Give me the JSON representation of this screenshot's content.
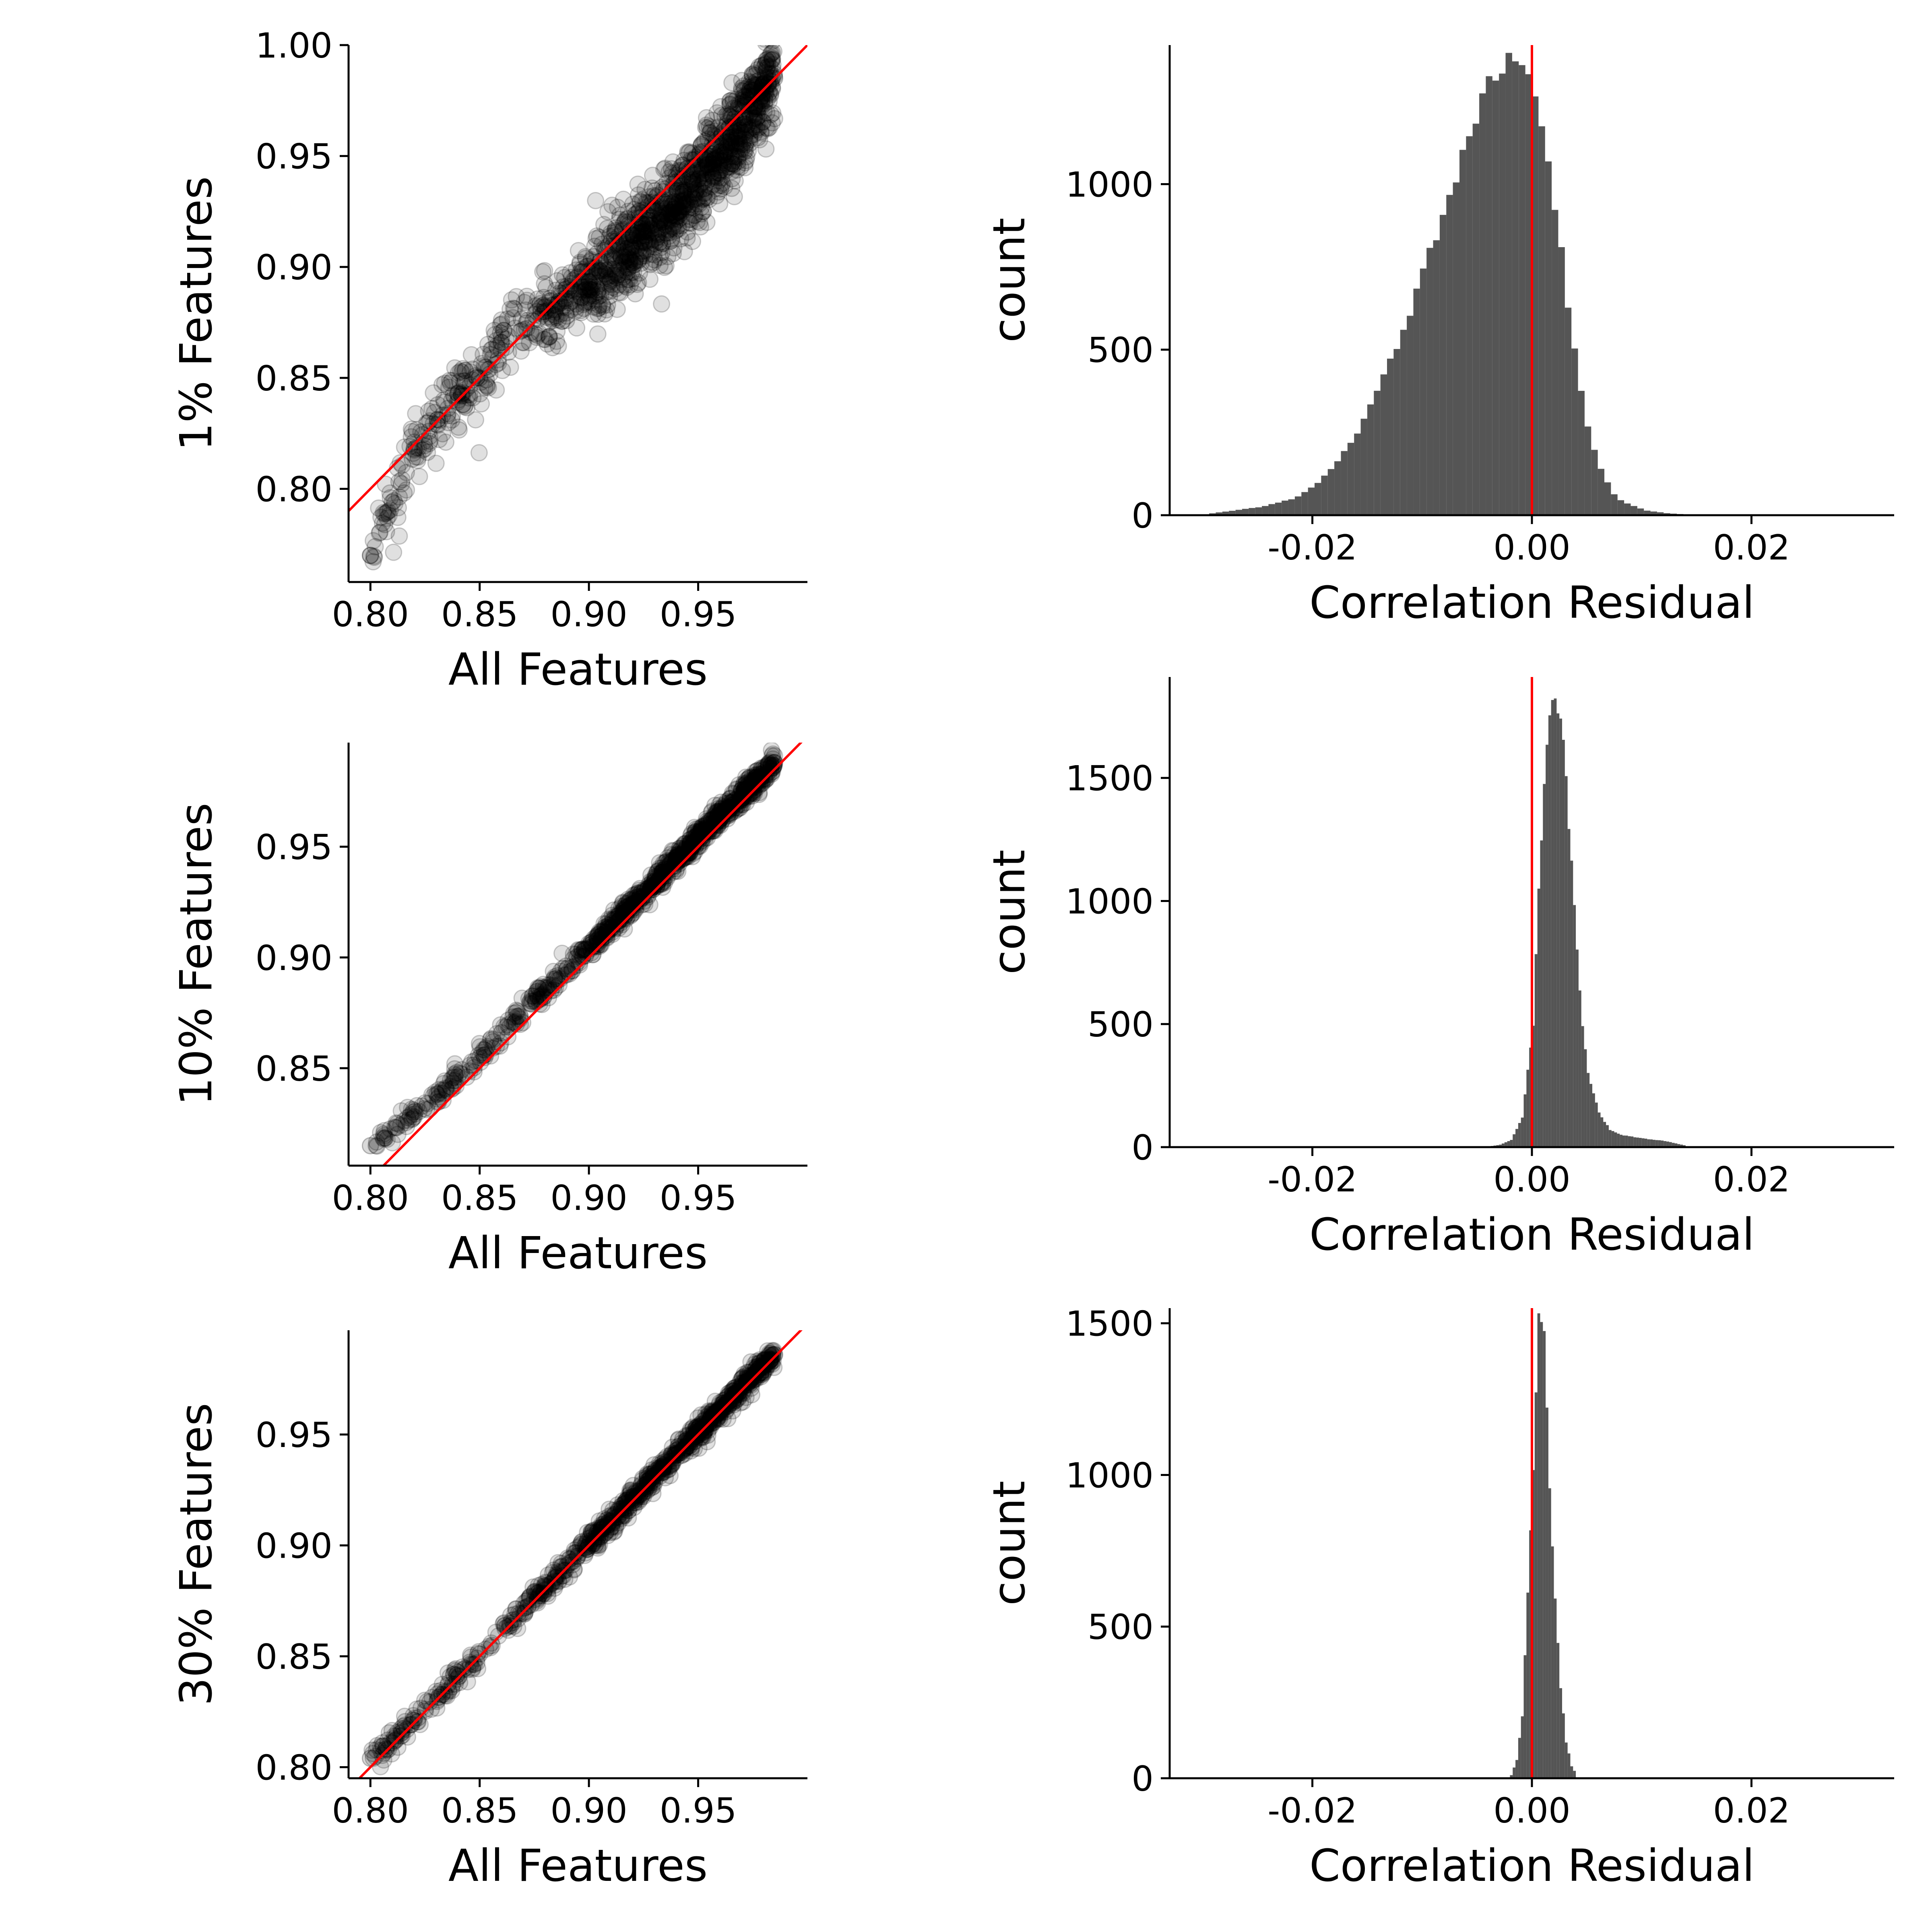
{
  "chart_data": [
    {
      "type": "scatter",
      "xlabel": "All Features",
      "ylabel": "1% Features",
      "xlim": [
        0.79,
        1.0
      ],
      "ylim": [
        0.758,
        1.0
      ],
      "xticks": [
        "0.80",
        "0.85",
        "0.90",
        "0.95"
      ],
      "yticks": [
        "0.80",
        "0.85",
        "0.90",
        "0.95",
        "1.00"
      ],
      "series": [
        {
          "x": 0.8,
          "y": 0.77
        },
        {
          "x": 0.81,
          "y": 0.794
        },
        {
          "x": 0.82,
          "y": 0.818
        },
        {
          "x": 0.84,
          "y": 0.843
        },
        {
          "x": 0.85,
          "y": 0.85
        },
        {
          "x": 0.86,
          "y": 0.866
        },
        {
          "x": 0.88,
          "y": 0.88
        },
        {
          "x": 0.9,
          "y": 0.893
        },
        {
          "x": 0.92,
          "y": 0.91
        },
        {
          "x": 0.94,
          "y": 0.928
        },
        {
          "x": 0.96,
          "y": 0.95
        },
        {
          "x": 0.985,
          "y": 0.985
        }
      ],
      "reference_line": "y = x",
      "colors": {
        "points": "#000000",
        "reference_line": "#ff0000"
      }
    },
    {
      "type": "bar",
      "xlabel": "Correlation Residual",
      "ylabel": "count",
      "xlim": [
        -0.033,
        0.033
      ],
      "ylim": [
        0,
        1420
      ],
      "xticks": [
        "-0.02",
        "0.00",
        "0.02"
      ],
      "yticks": [
        "0",
        "500",
        "1000"
      ],
      "x": [
        -0.03,
        -0.025,
        -0.022,
        -0.02,
        -0.018,
        -0.016,
        -0.014,
        -0.012,
        -0.01,
        -0.008,
        -0.006,
        -0.005,
        -0.004,
        -0.003,
        -0.002,
        -0.001,
        0.0,
        0.001,
        0.002,
        0.003,
        0.004,
        0.005,
        0.006,
        0.007,
        0.008,
        0.01,
        0.012,
        0.014
      ],
      "values": [
        3,
        25,
        50,
        90,
        160,
        260,
        400,
        560,
        750,
        950,
        1140,
        1230,
        1310,
        1360,
        1370,
        1340,
        1240,
        1100,
        900,
        640,
        400,
        240,
        140,
        70,
        40,
        15,
        6,
        2
      ],
      "reference_line": "x = 0",
      "colors": {
        "bars": "#555555",
        "reference_line": "#ff0000"
      }
    },
    {
      "type": "scatter",
      "xlabel": "All Features",
      "ylabel": "10% Features",
      "xlim": [
        0.79,
        1.0
      ],
      "ylim": [
        0.806,
        0.997
      ],
      "xticks": [
        "0.80",
        "0.85",
        "0.90",
        "0.95"
      ],
      "yticks": [
        "0.85",
        "0.90",
        "0.95"
      ],
      "series": [
        {
          "x": 0.8,
          "y": 0.815
        },
        {
          "x": 0.82,
          "y": 0.828
        },
        {
          "x": 0.84,
          "y": 0.846
        },
        {
          "x": 0.86,
          "y": 0.866
        },
        {
          "x": 0.89,
          "y": 0.895
        },
        {
          "x": 0.92,
          "y": 0.924
        },
        {
          "x": 0.95,
          "y": 0.954
        },
        {
          "x": 0.985,
          "y": 0.988
        }
      ],
      "reference_line": "y = x",
      "colors": {
        "points": "#000000",
        "reference_line": "#ff0000"
      }
    },
    {
      "type": "bar",
      "xlabel": "Correlation Residual",
      "ylabel": "count",
      "xlim": [
        -0.033,
        0.033
      ],
      "ylim": [
        0,
        1910
      ],
      "xticks": [
        "-0.02",
        "0.00",
        "0.02"
      ],
      "yticks": [
        "0",
        "500",
        "1000",
        "1500"
      ],
      "x": [
        -0.004,
        -0.003,
        -0.002,
        -0.001,
        0.0,
        0.0005,
        0.001,
        0.0015,
        0.002,
        0.0025,
        0.003,
        0.0035,
        0.004,
        0.0045,
        0.005,
        0.006,
        0.007,
        0.008,
        0.01,
        0.012,
        0.014
      ],
      "values": [
        3,
        10,
        30,
        120,
        500,
        1050,
        1500,
        1780,
        1850,
        1740,
        1500,
        1150,
        800,
        500,
        300,
        140,
        70,
        50,
        35,
        25,
        5
      ],
      "reference_line": "x = 0",
      "colors": {
        "bars": "#555555",
        "reference_line": "#ff0000"
      }
    },
    {
      "type": "scatter",
      "xlabel": "All Features",
      "ylabel": "30% Features",
      "xlim": [
        0.79,
        1.0
      ],
      "ylim": [
        0.795,
        0.997
      ],
      "xticks": [
        "0.80",
        "0.85",
        "0.90",
        "0.95"
      ],
      "yticks": [
        "0.80",
        "0.85",
        "0.90",
        "0.95"
      ],
      "series": [
        {
          "x": 0.8,
          "y": 0.804
        },
        {
          "x": 0.82,
          "y": 0.821
        },
        {
          "x": 0.85,
          "y": 0.851
        },
        {
          "x": 0.89,
          "y": 0.891
        },
        {
          "x": 0.92,
          "y": 0.921
        },
        {
          "x": 0.95,
          "y": 0.951
        },
        {
          "x": 0.985,
          "y": 0.986
        }
      ],
      "reference_line": "y = x",
      "colors": {
        "points": "#000000",
        "reference_line": "#ff0000"
      }
    },
    {
      "type": "bar",
      "xlabel": "Correlation Residual",
      "ylabel": "count",
      "xlim": [
        -0.033,
        0.033
      ],
      "ylim": [
        0,
        1550
      ],
      "xticks": [
        "-0.02",
        "0.00",
        "0.02"
      ],
      "yticks": [
        "0",
        "500",
        "1000",
        "1500"
      ],
      "x": [
        -0.002,
        -0.0015,
        -0.001,
        -0.0005,
        0.0,
        0.00025,
        0.0005,
        0.00075,
        0.001,
        0.00125,
        0.0015,
        0.002,
        0.0025,
        0.003,
        0.0035,
        0.004
      ],
      "values": [
        10,
        60,
        200,
        600,
        1000,
        1300,
        1500,
        1540,
        1450,
        1250,
        950,
        600,
        300,
        120,
        40,
        10
      ],
      "reference_line": "x = 0",
      "colors": {
        "bars": "#555555",
        "reference_line": "#ff0000"
      }
    }
  ]
}
